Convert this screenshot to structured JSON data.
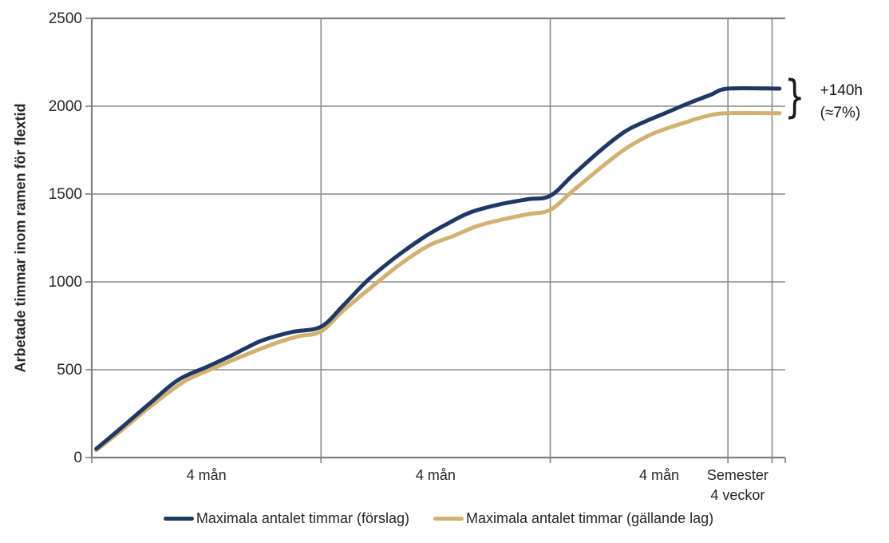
{
  "chart_data": {
    "type": "line",
    "title": "",
    "ylabel": "Arbetade timmar inom ramen för flextid",
    "ylim": [
      0,
      2500
    ],
    "yticks": [
      0,
      500,
      1000,
      1500,
      2000,
      2500
    ],
    "xlim": [
      0,
      12.1
    ],
    "grid": true,
    "legend_position": "bottom",
    "vertical_gridlines_x": [
      4.0,
      8.0,
      11.1,
      11.87
    ],
    "x_axis_ticks": [
      0,
      4.0,
      8.0,
      11.1,
      11.87,
      12.1
    ],
    "x_section_labels": [
      {
        "label": "4 mån",
        "x": 2.0
      },
      {
        "label": "4 mån",
        "x": 6.0
      },
      {
        "label": "4 mån",
        "x": 9.9
      },
      {
        "label": "Semester\n4 veckor",
        "x": 11.27
      }
    ],
    "series": [
      {
        "name": "Maximala antalet timmar (förslag)",
        "color": "#1f3864",
        "points": [
          [
            0.08,
            50
          ],
          [
            0.5,
            165
          ],
          [
            1.0,
            305
          ],
          [
            1.5,
            440
          ],
          [
            2.0,
            515
          ],
          [
            2.4,
            575
          ],
          [
            2.7,
            625
          ],
          [
            3.0,
            670
          ],
          [
            3.5,
            715
          ],
          [
            4.0,
            745
          ],
          [
            4.4,
            870
          ],
          [
            4.8,
            1005
          ],
          [
            5.3,
            1140
          ],
          [
            5.8,
            1255
          ],
          [
            6.2,
            1330
          ],
          [
            6.6,
            1395
          ],
          [
            7.1,
            1440
          ],
          [
            7.6,
            1470
          ],
          [
            8.0,
            1490
          ],
          [
            8.4,
            1610
          ],
          [
            8.9,
            1755
          ],
          [
            9.3,
            1855
          ],
          [
            9.6,
            1905
          ],
          [
            10.0,
            1960
          ],
          [
            10.4,
            2015
          ],
          [
            10.8,
            2065
          ],
          [
            11.1,
            2100
          ],
          [
            12.0,
            2100
          ]
        ]
      },
      {
        "name": "Maximala antalet timmar (gällande lag)",
        "color": "#d3b173",
        "points": [
          [
            0.08,
            42
          ],
          [
            0.5,
            150
          ],
          [
            1.0,
            285
          ],
          [
            1.6,
            430
          ],
          [
            2.1,
            505
          ],
          [
            2.5,
            560
          ],
          [
            2.8,
            600
          ],
          [
            3.2,
            650
          ],
          [
            3.6,
            690
          ],
          [
            4.0,
            718
          ],
          [
            4.4,
            840
          ],
          [
            4.9,
            975
          ],
          [
            5.4,
            1105
          ],
          [
            5.9,
            1210
          ],
          [
            6.3,
            1260
          ],
          [
            6.7,
            1315
          ],
          [
            7.1,
            1350
          ],
          [
            7.6,
            1385
          ],
          [
            8.0,
            1410
          ],
          [
            8.4,
            1520
          ],
          [
            8.9,
            1655
          ],
          [
            9.3,
            1755
          ],
          [
            9.7,
            1830
          ],
          [
            10.0,
            1870
          ],
          [
            10.4,
            1912
          ],
          [
            10.7,
            1942
          ],
          [
            11.07,
            1960
          ],
          [
            12.0,
            1960
          ]
        ]
      }
    ],
    "annotation": {
      "line1": "+140h",
      "line2": "(≈7%)",
      "brace": "}"
    },
    "colors": {
      "grid": "#8a8a8a",
      "axis": "#7f7f7f",
      "text": "#262626",
      "annotation": "#1a1a1a"
    }
  }
}
